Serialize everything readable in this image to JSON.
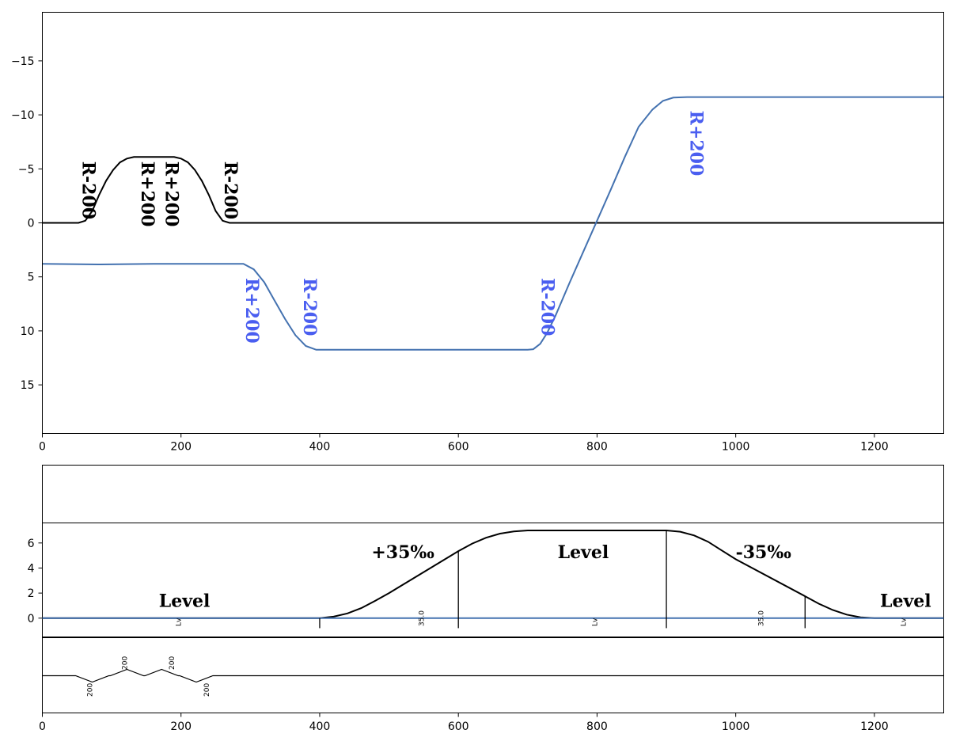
{
  "chart_data": [
    {
      "type": "line",
      "name": "alignment",
      "xlim": [
        0,
        1300
      ],
      "ylim": [
        19.5,
        -19.5
      ],
      "y_inverted": true,
      "x_ticks": [
        0,
        200,
        400,
        600,
        800,
        1000,
        1200
      ],
      "y_ticks": [
        -15,
        -10,
        -5,
        0,
        5,
        10,
        15
      ],
      "y_tick_labels": [
        "−15",
        "−10",
        "−5",
        "0",
        "5",
        "10",
        "15"
      ],
      "series": [
        {
          "color": "#000000",
          "points": [
            [
              0,
              0
            ],
            [
              52,
              0
            ],
            [
              62,
              -0.2
            ],
            [
              72,
              -1.1
            ],
            [
              82,
              -2.6
            ],
            [
              92,
              -3.9
            ],
            [
              102,
              -4.9
            ],
            [
              112,
              -5.6
            ],
            [
              122,
              -5.95
            ],
            [
              132,
              -6.1
            ],
            [
              190,
              -6.1
            ],
            [
              200,
              -5.95
            ],
            [
              210,
              -5.6
            ],
            [
              220,
              -4.9
            ],
            [
              230,
              -3.9
            ],
            [
              240,
              -2.6
            ],
            [
              250,
              -1.1
            ],
            [
              260,
              -0.2
            ],
            [
              270,
              0
            ],
            [
              1300,
              0
            ]
          ]
        },
        {
          "color": "#4472b0",
          "points": [
            [
              0,
              3.8
            ],
            [
              80,
              3.85
            ],
            [
              160,
              3.8
            ],
            [
              250,
              3.8
            ],
            [
              290,
              3.8
            ],
            [
              305,
              4.3
            ],
            [
              320,
              5.5
            ],
            [
              335,
              7.2
            ],
            [
              350,
              8.9
            ],
            [
              365,
              10.4
            ],
            [
              380,
              11.4
            ],
            [
              395,
              11.75
            ],
            [
              700,
              11.75
            ],
            [
              708,
              11.7
            ],
            [
              718,
              11.2
            ],
            [
              728,
              10.2
            ],
            [
              740,
              8.6
            ],
            [
              760,
              5.6
            ],
            [
              780,
              2.7
            ],
            [
              800,
              -0.2
            ],
            [
              820,
              -3.1
            ],
            [
              840,
              -6.1
            ],
            [
              860,
              -8.9
            ],
            [
              880,
              -10.5
            ],
            [
              895,
              -11.3
            ],
            [
              910,
              -11.6
            ],
            [
              930,
              -11.65
            ],
            [
              1300,
              -11.65
            ]
          ]
        }
      ],
      "annotations": [
        {
          "text": "R-200",
          "x": 58,
          "color": "#000000"
        },
        {
          "text": "R+200",
          "x": 143,
          "color": "#000000"
        },
        {
          "text": "R+200",
          "x": 178,
          "color": "#000000"
        },
        {
          "text": "R-200",
          "x": 263,
          "color": "#000000"
        },
        {
          "text": "R+200",
          "x": 294,
          "color": "#4a5ef0"
        },
        {
          "text": "R-200",
          "x": 377,
          "color": "#4a5ef0"
        },
        {
          "text": "R-200",
          "x": 720,
          "color": "#4a5ef0"
        },
        {
          "text": "R+200",
          "x": 935,
          "color": "#4a5ef0"
        }
      ]
    },
    {
      "type": "line",
      "name": "profile",
      "xlim": [
        0,
        1300
      ],
      "ylim": [
        -1.5,
        7.6
      ],
      "x_ticks": [
        0,
        200,
        400,
        600,
        800,
        1000,
        1200
      ],
      "y_ticks": [
        0,
        2,
        4,
        6
      ],
      "series": [
        {
          "color": "#000000",
          "points": [
            [
              0,
              0
            ],
            [
              400,
              0
            ],
            [
              420,
              0.12
            ],
            [
              440,
              0.38
            ],
            [
              460,
              0.8
            ],
            [
              480,
              1.38
            ],
            [
              500,
              2.0
            ],
            [
              600,
              5.35
            ],
            [
              620,
              5.95
            ],
            [
              640,
              6.42
            ],
            [
              660,
              6.75
            ],
            [
              680,
              6.92
            ],
            [
              700,
              7.0
            ],
            [
              900,
              7.0
            ],
            [
              920,
              6.9
            ],
            [
              940,
              6.6
            ],
            [
              960,
              6.1
            ],
            [
              980,
              5.4
            ],
            [
              1000,
              4.7
            ],
            [
              1100,
              1.75
            ],
            [
              1120,
              1.15
            ],
            [
              1140,
              0.65
            ],
            [
              1160,
              0.28
            ],
            [
              1180,
              0.07
            ],
            [
              1200,
              0
            ],
            [
              1300,
              0
            ]
          ]
        },
        {
          "color": "#4472b0",
          "points": [
            [
              0,
              0
            ],
            [
              1300,
              0
            ]
          ]
        }
      ],
      "grade_breaks": [
        {
          "x": 400,
          "y": 0
        },
        {
          "x": 600,
          "y": 5.35
        },
        {
          "x": 900,
          "y": 7.0
        },
        {
          "x": 1100,
          "y": 1.75
        }
      ],
      "grade_labels": [
        {
          "text": "Level",
          "x": 205,
          "y": 0.9
        },
        {
          "text": "+35‰",
          "x": 520,
          "y": 4.8
        },
        {
          "text": "Level",
          "x": 780,
          "y": 4.8
        },
        {
          "text": "-35‰",
          "x": 1040,
          "y": 4.8
        },
        {
          "text": "Level",
          "x": 1245,
          "y": 0.9
        }
      ],
      "segment_labels": [
        {
          "text": "Lv",
          "x": 200
        },
        {
          "text": "35.0",
          "x": 550
        },
        {
          "text": "Lv",
          "x": 800
        },
        {
          "text": "35.0",
          "x": 1040
        },
        {
          "text": "Lv",
          "x": 1245
        }
      ]
    },
    {
      "type": "line",
      "name": "curvature",
      "xlim": [
        0,
        1300
      ],
      "x_ticks": [
        0,
        200,
        400,
        600,
        800,
        1000,
        1200
      ],
      "series": [
        {
          "color": "#000000",
          "points": [
            [
              0,
              0
            ],
            [
              48,
              0
            ],
            [
              72,
              -1
            ],
            [
              96,
              0
            ],
            [
              98,
              0
            ],
            [
              122,
              1
            ],
            [
              146,
              0
            ],
            [
              148,
              0
            ],
            [
              172,
              1
            ],
            [
              196,
              0
            ],
            [
              198,
              0
            ],
            [
              222,
              -1
            ],
            [
              246,
              0
            ],
            [
              1300,
              0
            ]
          ]
        }
      ],
      "radius_labels": [
        {
          "text": "200",
          "x": 72,
          "side": "below"
        },
        {
          "text": "200",
          "x": 122,
          "side": "above"
        },
        {
          "text": "200",
          "x": 190,
          "side": "above"
        },
        {
          "text": "200",
          "x": 240,
          "side": "below"
        }
      ]
    }
  ]
}
